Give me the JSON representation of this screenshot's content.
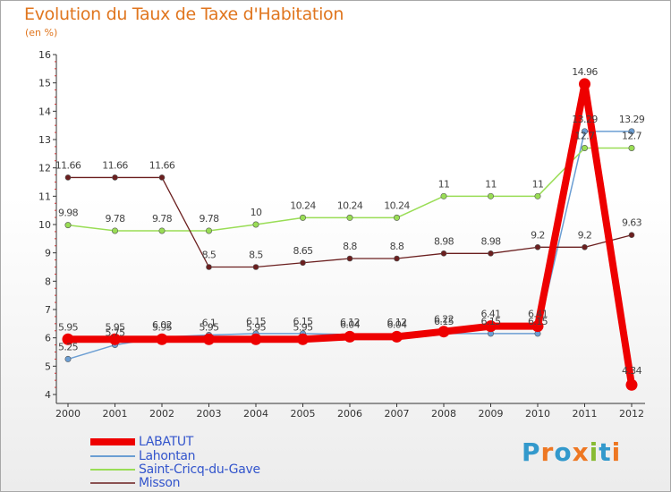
{
  "title": "Evolution du Taux de Taxe d'Habitation",
  "unit": "(en %)",
  "logo": "Proxiti",
  "colors": {
    "LABATUT": "#ee0000",
    "Lahontan": "#6b9ed3",
    "Saint-Cricq-du-Gave": "#99dd55",
    "Misson": "#6b1f1f"
  },
  "chart_data": {
    "type": "line",
    "title": "Evolution du Taux de Taxe d'Habitation",
    "ylabel": "(en %)",
    "xlabel": "",
    "ylim": [
      4,
      16
    ],
    "yticks": [
      "4",
      "5",
      "6",
      "7",
      "8",
      "9",
      "10",
      "11",
      "12",
      "13",
      "14",
      "15",
      "16"
    ],
    "x": [
      "2000",
      "2001",
      "2002",
      "2003",
      "2004",
      "2005",
      "2006",
      "2007",
      "2008",
      "2009",
      "2010",
      "2011",
      "2012"
    ],
    "grid": false,
    "legend": "bottom-left",
    "series": [
      {
        "name": "LABATUT",
        "values": [
          5.95,
          5.95,
          5.95,
          5.95,
          5.95,
          5.95,
          6.04,
          6.04,
          6.22,
          6.41,
          6.41,
          14.96,
          4.34
        ],
        "labels": [
          "5.95",
          "5.95",
          "5.95",
          "5.95",
          "5.95",
          "5.95",
          "6.04",
          "6.04",
          "6.22",
          "6.41",
          "6.41",
          "14.96",
          "4.34"
        ]
      },
      {
        "name": "Lahontan",
        "values": [
          5.25,
          5.75,
          6.02,
          6.1,
          6.15,
          6.15,
          6.12,
          6.12,
          6.15,
          6.15,
          6.15,
          13.29,
          13.29
        ],
        "labels": [
          "5.25",
          "5.75",
          "6.02",
          "6.1",
          "6.15",
          "6.15",
          "6.12",
          "6.12",
          "6.15",
          "6.15",
          "6.15",
          "13.29",
          "13.29"
        ]
      },
      {
        "name": "Saint-Cricq-du-Gave",
        "values": [
          9.98,
          9.78,
          9.78,
          9.78,
          10,
          10.24,
          10.24,
          10.24,
          11,
          11,
          11,
          12.7,
          12.7
        ],
        "labels": [
          "9.98",
          "9.78",
          "9.78",
          "9.78",
          "10",
          "10.24",
          "10.24",
          "10.24",
          "11",
          "11",
          "11",
          "12.7",
          "12.7"
        ]
      },
      {
        "name": "Misson",
        "values": [
          11.66,
          11.66,
          11.66,
          8.5,
          8.5,
          8.65,
          8.8,
          8.8,
          8.98,
          8.98,
          9.2,
          9.2,
          9.63
        ],
        "labels": [
          "11.66",
          "11.66",
          "11.66",
          "8.5",
          "8.5",
          "8.65",
          "8.8",
          "8.8",
          "8.98",
          "8.98",
          "9.2",
          "9.2",
          "9.63"
        ]
      }
    ]
  },
  "legend": [
    "LABATUT",
    "Lahontan",
    "Saint-Cricq-du-Gave",
    "Misson"
  ]
}
